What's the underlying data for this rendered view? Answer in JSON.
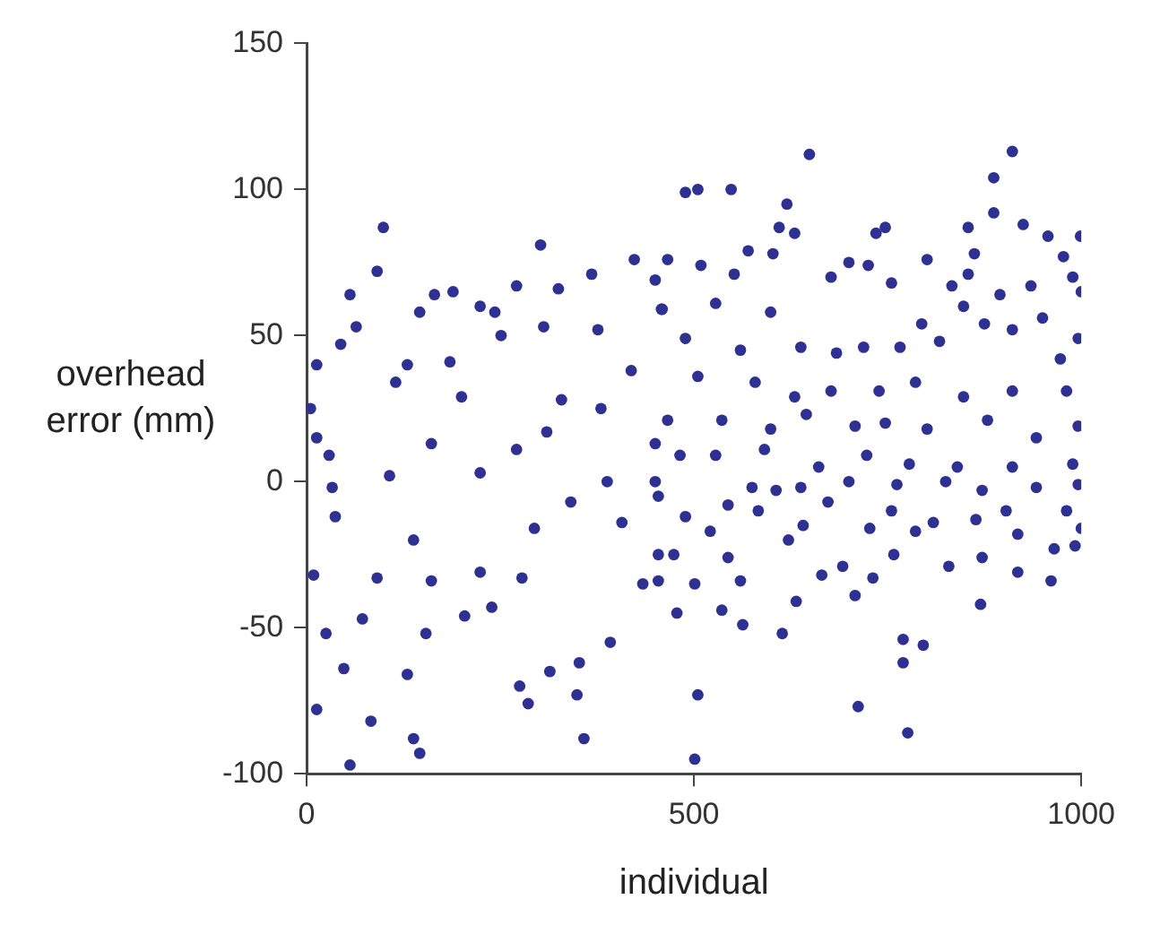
{
  "chart_data": {
    "type": "scatter",
    "xlabel": "individual",
    "ylabel": "overhead error (mm)",
    "xlim": [
      0,
      1000
    ],
    "ylim": [
      -100,
      150
    ],
    "xticks": [
      0,
      500,
      1000
    ],
    "yticks": [
      -100,
      -50,
      0,
      50,
      100,
      150
    ],
    "grid": false,
    "legend": false,
    "marker": "circle",
    "series": [
      {
        "color": "#2e3192",
        "x": [
          99,
          91,
          56,
          64,
          44,
          13,
          5,
          13,
          29,
          33,
          37,
          9,
          25,
          48,
          13,
          56,
          83,
          72,
          91,
          107,
          115,
          130,
          138,
          130,
          138,
          146,
          154,
          161,
          161,
          146,
          165,
          189,
          185,
          200,
          224,
          224,
          243,
          224,
          239,
          204,
          251,
          271,
          271,
          278,
          275,
          286,
          302,
          306,
          310,
          294,
          314,
          325,
          329,
          341,
          349,
          358,
          352,
          368,
          376,
          380,
          388,
          392,
          423,
          419,
          407,
          434,
          450,
          459,
          450,
          454,
          649,
          489,
          505,
          548,
          620,
          610,
          630,
          570,
          602,
          466,
          509,
          552,
          458,
          528,
          599,
          677,
          700,
          725,
          735,
          747,
          755,
          801,
          833,
          854,
          862,
          854,
          887,
          887,
          911,
          925,
          957,
          977,
          999,
          989,
          1000,
          895,
          935,
          794,
          817,
          848,
          875,
          911,
          950,
          996,
          489,
          560,
          638,
          684,
          719,
          766,
          973,
          505,
          579,
          630,
          677,
          739,
          786,
          848,
          911,
          981,
          466,
          536,
          599,
          645,
          708,
          747,
          801,
          879,
          942,
          996,
          482,
          528,
          591,
          661,
          723,
          778,
          840,
          911,
          989,
          450,
          575,
          638,
          700,
          762,
          825,
          872,
          942,
          996,
          454,
          544,
          606,
          673,
          755,
          809,
          903,
          981,
          489,
          521,
          583,
          641,
          727,
          786,
          864,
          918,
          1000,
          474,
          544,
          622,
          692,
          758,
          829,
          872,
          918,
          965,
          992,
          454,
          501,
          560,
          665,
          731,
          961,
          478,
          536,
          563,
          632,
          708,
          870,
          614,
          770,
          796,
          770,
          505,
          712,
          776,
          501
        ],
        "values": [
          87,
          72,
          64,
          53,
          47,
          40,
          25,
          15,
          9,
          -2,
          -12,
          -32,
          -52,
          -64,
          -78,
          -97,
          -82,
          -47,
          -33,
          2,
          34,
          40,
          -20,
          -66,
          -88,
          -93,
          -52,
          -34,
          13,
          58,
          64,
          65,
          41,
          29,
          3,
          60,
          58,
          -31,
          -43,
          -46,
          50,
          67,
          11,
          -33,
          -70,
          -76,
          81,
          53,
          17,
          -16,
          -65,
          66,
          28,
          -7,
          -73,
          -88,
          -62,
          71,
          52,
          25,
          0,
          -55,
          76,
          38,
          -14,
          -35,
          69,
          59,
          13,
          -25,
          112,
          99,
          100,
          100,
          95,
          87,
          85,
          79,
          78,
          76,
          74,
          71,
          59,
          61,
          58,
          70,
          75,
          74,
          85,
          87,
          68,
          76,
          67,
          87,
          78,
          71,
          104,
          92,
          113,
          88,
          84,
          77,
          84,
          70,
          65,
          64,
          67,
          54,
          48,
          60,
          54,
          52,
          56,
          49,
          49,
          45,
          46,
          44,
          46,
          46,
          42,
          36,
          34,
          29,
          31,
          31,
          34,
          29,
          31,
          31,
          21,
          21,
          18,
          23,
          19,
          20,
          18,
          21,
          15,
          19,
          9,
          9,
          11,
          5,
          9,
          6,
          5,
          5,
          6,
          0,
          -2,
          -2,
          0,
          -1,
          0,
          -3,
          -2,
          -1,
          -5,
          -8,
          -3,
          -7,
          -10,
          -14,
          -10,
          -10,
          -12,
          -17,
          -10,
          -15,
          -16,
          -17,
          -13,
          -18,
          -16,
          -25,
          -26,
          -20,
          -29,
          -25,
          -29,
          -26,
          -31,
          -23,
          -22,
          -34,
          -35,
          -34,
          -32,
          -33,
          -34,
          -45,
          -44,
          -49,
          -41,
          -39,
          -42,
          -52,
          -54,
          -56,
          -62,
          -73,
          -77,
          -86,
          -95
        ]
      }
    ]
  }
}
